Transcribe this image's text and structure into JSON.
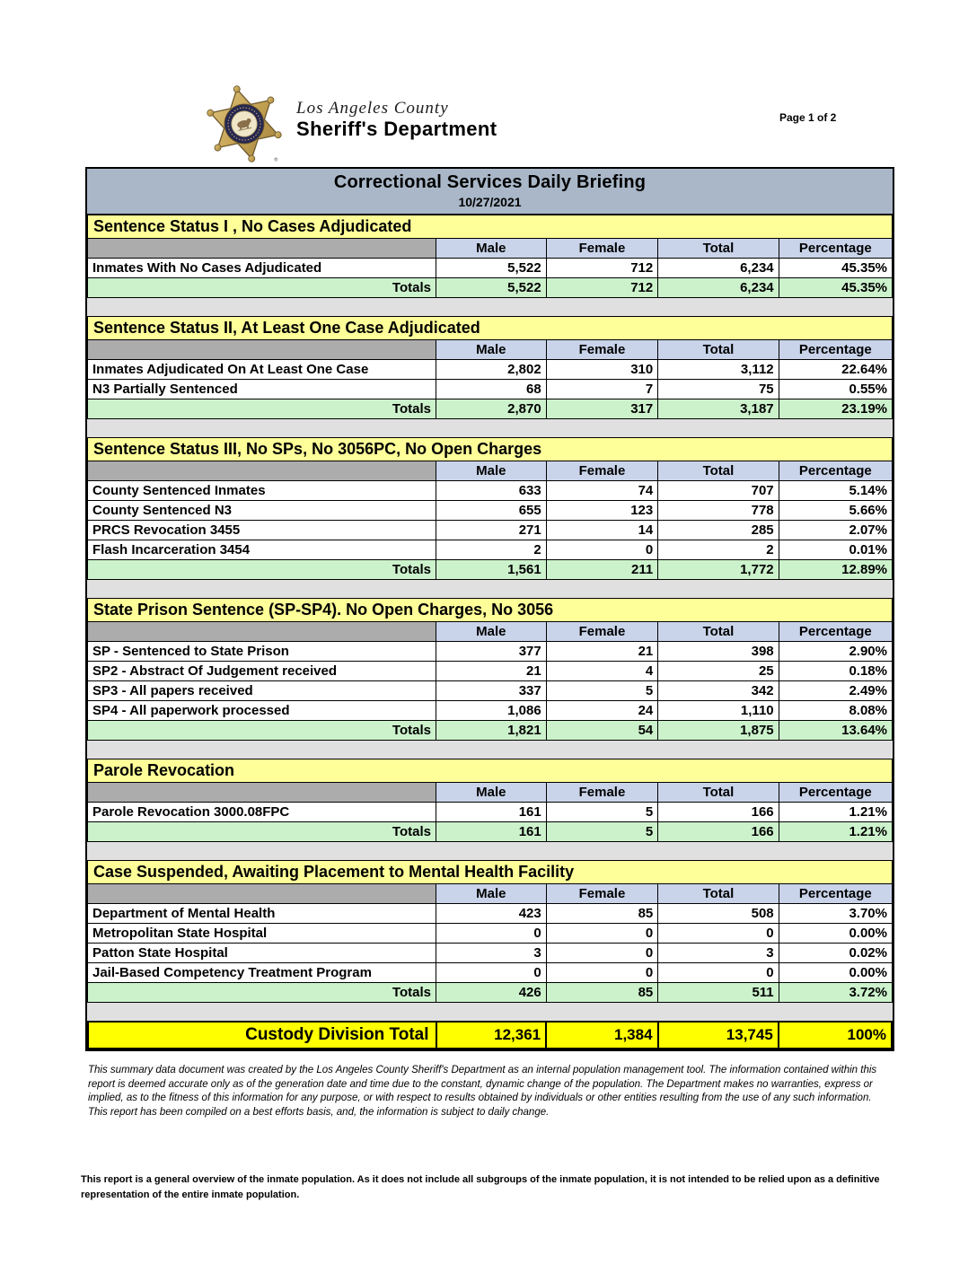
{
  "colors": {
    "title-bar-bg": "#a9b7c8",
    "section-header-bg": "#ffff99",
    "column-header-bg": "#c9d4ea",
    "column-spacer-bg": "#acacac",
    "totals-bg": "#ccf2cc",
    "spacer-bg": "#e0e0e0",
    "grand-total-bg": "#ffff00",
    "badge-gold": "#c7a556",
    "badge-navy": "#28284f",
    "badge-cream": "#efe6ca"
  },
  "header": {
    "agency_line1": "Los Angeles County",
    "agency_line2": "Sheriff's Department",
    "page_indicator": "Page 1 of 2",
    "badge_trademark": "®"
  },
  "report": {
    "title": "Correctional Services Daily Briefing",
    "date": "10/27/2021",
    "columns": [
      "Male",
      "Female",
      "Total",
      "Percentage"
    ],
    "totals_label": "Totals",
    "sections": [
      {
        "title": "Sentence Status I , No Cases Adjudicated",
        "rows": [
          {
            "label": "Inmates With No Cases Adjudicated",
            "male": "5,522",
            "female": "712",
            "total": "6,234",
            "percentage": "45.35%"
          }
        ],
        "totals": {
          "male": "5,522",
          "female": "712",
          "total": "6,234",
          "percentage": "45.35%"
        }
      },
      {
        "title": "Sentence Status II, At Least One Case Adjudicated",
        "rows": [
          {
            "label": "Inmates Adjudicated On At Least One Case",
            "male": "2,802",
            "female": "310",
            "total": "3,112",
            "percentage": "22.64%"
          },
          {
            "label": "N3 Partially Sentenced",
            "male": "68",
            "female": "7",
            "total": "75",
            "percentage": "0.55%"
          }
        ],
        "totals": {
          "male": "2,870",
          "female": "317",
          "total": "3,187",
          "percentage": "23.19%"
        }
      },
      {
        "title": "Sentence Status III, No SPs, No 3056PC, No Open Charges",
        "rows": [
          {
            "label": "County Sentenced Inmates",
            "male": "633",
            "female": "74",
            "total": "707",
            "percentage": "5.14%"
          },
          {
            "label": "County Sentenced N3",
            "male": "655",
            "female": "123",
            "total": "778",
            "percentage": "5.66%"
          },
          {
            "label": "PRCS Revocation 3455",
            "male": "271",
            "female": "14",
            "total": "285",
            "percentage": "2.07%"
          },
          {
            "label": "Flash Incarceration 3454",
            "male": "2",
            "female": "0",
            "total": "2",
            "percentage": "0.01%"
          }
        ],
        "totals": {
          "male": "1,561",
          "female": "211",
          "total": "1,772",
          "percentage": "12.89%"
        }
      },
      {
        "title": "State Prison Sentence (SP-SP4). No Open Charges, No 3056",
        "rows": [
          {
            "label": "SP - Sentenced to State Prison",
            "male": "377",
            "female": "21",
            "total": "398",
            "percentage": "2.90%"
          },
          {
            "label": "SP2 - Abstract Of Judgement received",
            "male": "21",
            "female": "4",
            "total": "25",
            "percentage": "0.18%"
          },
          {
            "label": "SP3 - All papers received",
            "male": "337",
            "female": "5",
            "total": "342",
            "percentage": "2.49%"
          },
          {
            "label": "SP4 - All paperwork processed",
            "male": "1,086",
            "female": "24",
            "total": "1,110",
            "percentage": "8.08%"
          }
        ],
        "totals": {
          "male": "1,821",
          "female": "54",
          "total": "1,875",
          "percentage": "13.64%"
        }
      },
      {
        "title": "Parole Revocation",
        "rows": [
          {
            "label": "Parole Revocation 3000.08FPC",
            "male": "161",
            "female": "5",
            "total": "166",
            "percentage": "1.21%"
          }
        ],
        "totals": {
          "male": "161",
          "female": "5",
          "total": "166",
          "percentage": "1.21%"
        }
      },
      {
        "title": "Case Suspended, Awaiting Placement to Mental Health Facility",
        "rows": [
          {
            "label": "Department of Mental Health",
            "male": "423",
            "female": "85",
            "total": "508",
            "percentage": "3.70%"
          },
          {
            "label": "Metropolitan State Hospital",
            "male": "0",
            "female": "0",
            "total": "0",
            "percentage": "0.00%"
          },
          {
            "label": "Patton State Hospital",
            "male": "3",
            "female": "0",
            "total": "3",
            "percentage": "0.02%"
          },
          {
            "label": "Jail-Based Competency Treatment Program",
            "male": "0",
            "female": "0",
            "total": "0",
            "percentage": "0.00%"
          }
        ],
        "totals": {
          "male": "426",
          "female": "85",
          "total": "511",
          "percentage": "3.72%"
        }
      }
    ],
    "grand_total": {
      "label": "Custody Division Total",
      "male": "12,361",
      "female": "1,384",
      "total": "13,745",
      "percentage": "100%"
    }
  },
  "footnotes": {
    "disclaimer_internal": "This summary data document was created by the Los Angeles County Sheriff's Department as an internal population management tool.  The information contained within this report is deemed accurate only as of the generation date and time due to the constant, dynamic change of the population.  The Department makes no warranties, express or implied, as to the fitness of this information for any purpose, or with respect to results obtained by individuals or other entities resulting from the use of any such information.  This report has been compiled on a best efforts basis, and, the information is subject to daily change.",
    "disclaimer_overview": "This report is a general overview of the inmate population.  As it does not include all subgroups of the inmate population, it is not intended to be relied upon as a definitive representation of the entire inmate population."
  }
}
